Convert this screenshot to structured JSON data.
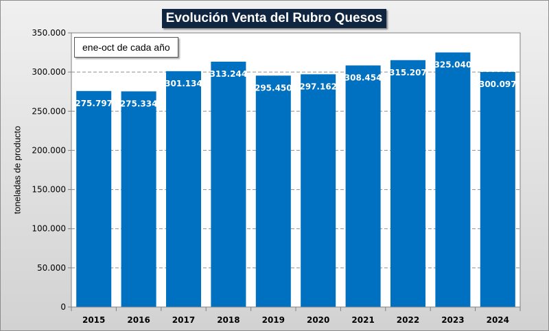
{
  "chart_data": {
    "type": "bar",
    "title": "Evolución Venta del Rubro Quesos",
    "annotation": "ene-oct de cada año",
    "xlabel": "",
    "ylabel": "toneladas de producto",
    "ylim": [
      0,
      350000
    ],
    "yticks": [
      0,
      50000,
      100000,
      150000,
      200000,
      250000,
      300000,
      350000
    ],
    "ytick_labels": [
      "0",
      "50.000",
      "100.000",
      "150.000",
      "200.000",
      "250.000",
      "300.000",
      "350.000"
    ],
    "categories": [
      "2015",
      "2016",
      "2017",
      "2018",
      "2019",
      "2020",
      "2021",
      "2022",
      "2023",
      "2024"
    ],
    "values": [
      275797,
      275334,
      301134,
      313244,
      295450,
      297162,
      308454,
      315207,
      325040,
      300097
    ],
    "value_labels": [
      "275.797",
      "275.334",
      "301.134",
      "313.244",
      "295.450",
      "297.162",
      "308.454",
      "315.207",
      "325.040",
      "300.097"
    ],
    "grid": "dashed horizontal",
    "legend": "none"
  },
  "colors": {
    "bar": "#0070c0",
    "title_bg": "#0f2540",
    "plot_bg": "#ffffff",
    "grid": "#8c8c8c"
  }
}
